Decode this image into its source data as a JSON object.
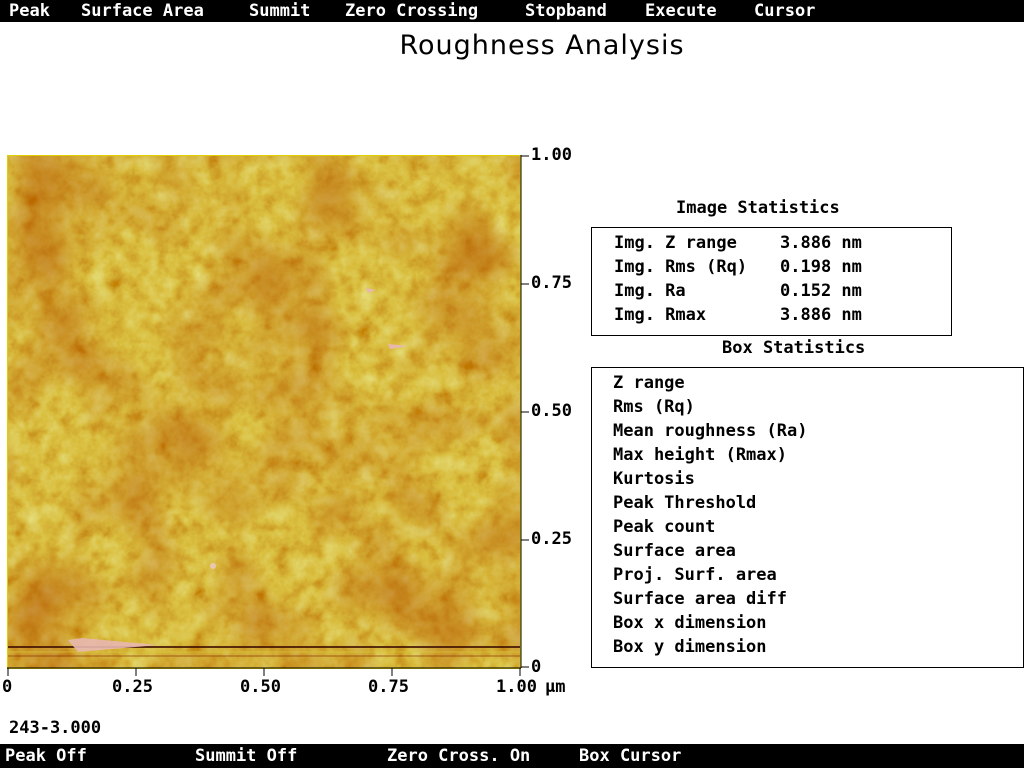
{
  "menu": {
    "items": [
      "Peak",
      "Surface Area",
      "Summit",
      "Zero Crossing",
      "Stopband",
      "Execute",
      "Cursor"
    ]
  },
  "title": "Roughness Analysis",
  "image": {
    "description_colors": {
      "dark": "#7a1f00",
      "mid": "#b98a0a",
      "light": "#d6c83a",
      "highlight": "#e8b8b0"
    },
    "y_ticks": [
      "1.00",
      "0.75",
      "0.50",
      "0.25",
      "0"
    ],
    "x_ticks": [
      "0",
      "0.25",
      "0.50",
      "0.75",
      "1.00"
    ],
    "x_unit": "µm"
  },
  "image_statistics": {
    "heading": "Image Statistics",
    "rows": [
      {
        "label": "Img. Z range",
        "value": "3.886 nm"
      },
      {
        "label": "Img. Rms (Rq)",
        "value": "0.198 nm"
      },
      {
        "label": "Img. Ra",
        "value": "0.152 nm"
      },
      {
        "label": "Img. Rmax",
        "value": "3.886 nm"
      }
    ]
  },
  "box_statistics": {
    "heading": "Box Statistics",
    "rows": [
      "Z range",
      "Rms (Rq)",
      "Mean roughness (Ra)",
      "Max height (Rmax)",
      "Kurtosis",
      "Peak Threshold",
      "Peak count",
      "Surface area",
      "Proj. Surf. area",
      "Surface area diff",
      "Box x dimension",
      "Box y dimension"
    ]
  },
  "scan_label": "243-3.000",
  "status": {
    "peak": "Peak Off",
    "summit": "Summit Off",
    "zero_cross": "Zero Cross. On",
    "cursor": "Box Cursor"
  }
}
